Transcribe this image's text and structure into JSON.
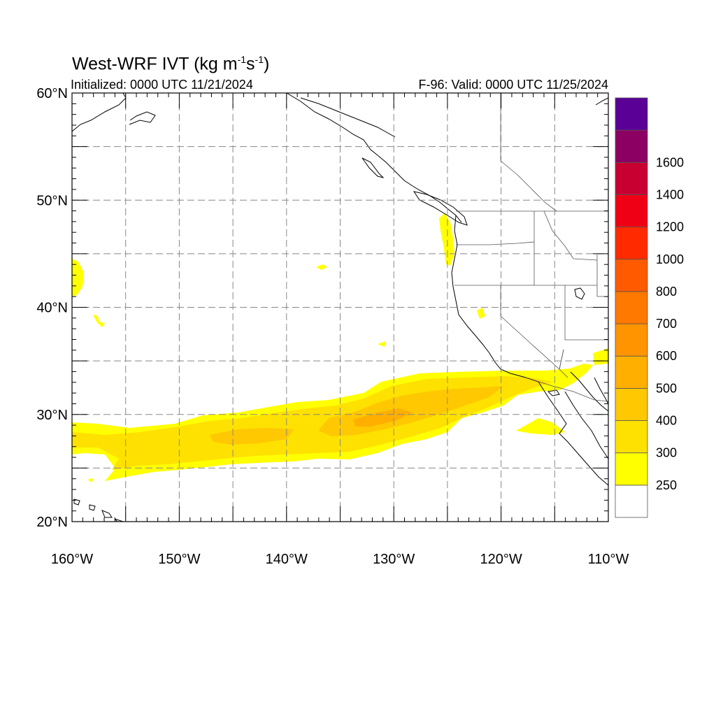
{
  "title": {
    "prefix": "West-WRF IVT (kg m",
    "exp1": "-1",
    "mid": "s",
    "exp2": "-1",
    "suffix": ")"
  },
  "subtitle_left": "Initialized: 0000 UTC 11/21/2024",
  "subtitle_right": "F-96: Valid: 0000 UTC 11/25/2024",
  "map": {
    "lon_range": [
      -160,
      -110
    ],
    "lat_range": [
      20,
      60
    ],
    "lat_labels": [
      {
        "value": 60,
        "text": "60°N"
      },
      {
        "value": 50,
        "text": "50°N"
      },
      {
        "value": 40,
        "text": "40°N"
      },
      {
        "value": 30,
        "text": "30°N"
      },
      {
        "value": 20,
        "text": "20°N"
      }
    ],
    "lon_labels": [
      {
        "value": -160,
        "text": "160°W"
      },
      {
        "value": -150,
        "text": "150°W"
      },
      {
        "value": -140,
        "text": "140°W"
      },
      {
        "value": -130,
        "text": "130°W"
      },
      {
        "value": -120,
        "text": "120°W"
      },
      {
        "value": -110,
        "text": "110°W"
      }
    ],
    "grid_spacing_deg": 5
  },
  "colorbar": {
    "levels": [
      250,
      300,
      400,
      500,
      600,
      700,
      800,
      1000,
      1200,
      1400,
      1600
    ],
    "labels": [
      "250",
      "300",
      "400",
      "500",
      "600",
      "700",
      "800",
      "1000",
      "1200",
      "1400",
      "1600"
    ],
    "colors": [
      "#ffffff",
      "#ffff00",
      "#ffe100",
      "#ffc800",
      "#ffaf00",
      "#ff9400",
      "#ff7800",
      "#ff5a00",
      "#ff2a00",
      "#f00014",
      "#c80032",
      "#8c0064",
      "#5a0096"
    ]
  }
}
